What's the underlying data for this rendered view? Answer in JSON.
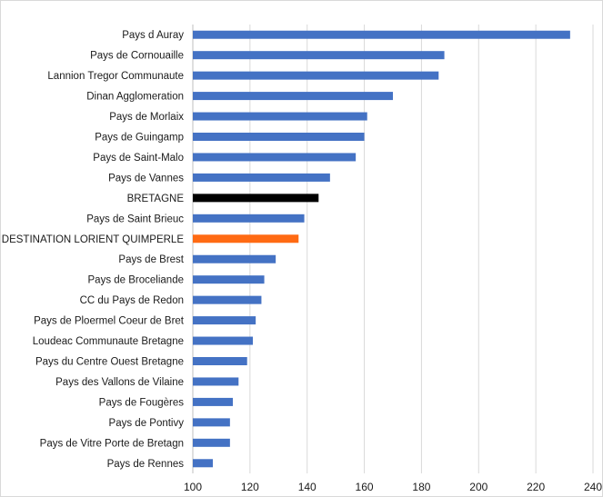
{
  "chart_data": {
    "type": "bar",
    "orientation": "horizontal",
    "title": "",
    "xlabel": "",
    "ylabel": "",
    "xlim": [
      100,
      240
    ],
    "x_ticks": [
      100,
      120,
      140,
      160,
      180,
      200,
      220,
      240
    ],
    "grid": true,
    "legend": "none",
    "default_color": "#4472c4",
    "categories": [
      "Pays d Auray",
      "Pays de Cornouaille",
      "Lannion Tregor Communaute",
      "Dinan Agglomeration",
      "Pays de Morlaix",
      "Pays de Guingamp",
      "Pays de Saint-Malo",
      "Pays de Vannes",
      "BRETAGNE",
      "Pays de Saint Brieuc",
      "DESTINATION LORIENT QUIMPERLE",
      "Pays de Brest",
      "Pays de Broceliande",
      "CC du Pays de Redon",
      "Pays de Ploermel Coeur de Bret",
      "Loudeac Communaute   Bretagne",
      "Pays du Centre Ouest Bretagne",
      "Pays des Vallons de Vilaine",
      "Pays de Fougères",
      "Pays de Pontivy",
      "Pays de Vitre Porte de Bretagn",
      "Pays de Rennes"
    ],
    "values": [
      232,
      188,
      186,
      170,
      161,
      160,
      157,
      148,
      144,
      139,
      137,
      129,
      125,
      124,
      122,
      121,
      119,
      116,
      114,
      113,
      113,
      107
    ],
    "colors": [
      "#4472c4",
      "#4472c4",
      "#4472c4",
      "#4472c4",
      "#4472c4",
      "#4472c4",
      "#4472c4",
      "#4472c4",
      "#000000",
      "#4472c4",
      "#ff6a13",
      "#4472c4",
      "#4472c4",
      "#4472c4",
      "#4472c4",
      "#4472c4",
      "#4472c4",
      "#4472c4",
      "#4472c4",
      "#4472c4",
      "#4472c4",
      "#4472c4"
    ]
  }
}
